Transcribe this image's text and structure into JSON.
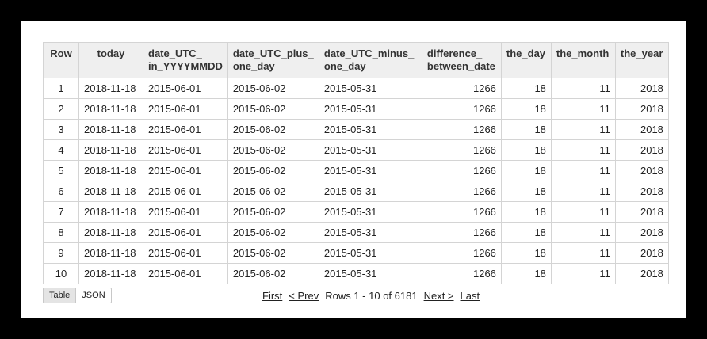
{
  "columns": [
    "Row",
    "today",
    "date_UTC_\nin_YYYYMMDD",
    "date_UTC_plus_\none_day",
    "date_UTC_minus_\none_day",
    "difference_\nbetween_date",
    "the_day",
    "the_month",
    "the_year"
  ],
  "rows": [
    [
      "1",
      "2018-11-18",
      "2015-06-01",
      "2015-06-02",
      "2015-05-31",
      "1266",
      "18",
      "11",
      "2018"
    ],
    [
      "2",
      "2018-11-18",
      "2015-06-01",
      "2015-06-02",
      "2015-05-31",
      "1266",
      "18",
      "11",
      "2018"
    ],
    [
      "3",
      "2018-11-18",
      "2015-06-01",
      "2015-06-02",
      "2015-05-31",
      "1266",
      "18",
      "11",
      "2018"
    ],
    [
      "4",
      "2018-11-18",
      "2015-06-01",
      "2015-06-02",
      "2015-05-31",
      "1266",
      "18",
      "11",
      "2018"
    ],
    [
      "5",
      "2018-11-18",
      "2015-06-01",
      "2015-06-02",
      "2015-05-31",
      "1266",
      "18",
      "11",
      "2018"
    ],
    [
      "6",
      "2018-11-18",
      "2015-06-01",
      "2015-06-02",
      "2015-05-31",
      "1266",
      "18",
      "11",
      "2018"
    ],
    [
      "7",
      "2018-11-18",
      "2015-06-01",
      "2015-06-02",
      "2015-05-31",
      "1266",
      "18",
      "11",
      "2018"
    ],
    [
      "8",
      "2018-11-18",
      "2015-06-01",
      "2015-06-02",
      "2015-05-31",
      "1266",
      "18",
      "11",
      "2018"
    ],
    [
      "9",
      "2018-11-18",
      "2015-06-01",
      "2015-06-02",
      "2015-05-31",
      "1266",
      "18",
      "11",
      "2018"
    ],
    [
      "10",
      "2018-11-18",
      "2015-06-01",
      "2015-06-02",
      "2015-05-31",
      "1266",
      "18",
      "11",
      "2018"
    ]
  ],
  "view_toggle": {
    "table_label": "Table",
    "json_label": "JSON",
    "selected": "Table"
  },
  "pagination": {
    "first_label": "First",
    "prev_label": "< Prev",
    "range_text": "Rows 1 - 10 of 6181",
    "next_label": "Next >",
    "last_label": "Last"
  }
}
